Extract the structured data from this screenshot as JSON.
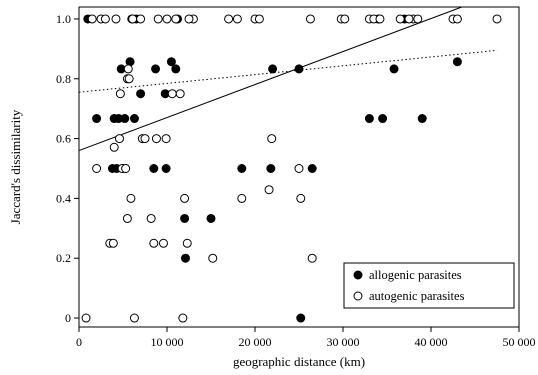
{
  "chart_data": {
    "type": "scatter",
    "xlabel": "geographic distance (km)",
    "ylabel": "Jaccard's dissimilarity",
    "xlim": [
      0,
      50000
    ],
    "ylim": [
      -0.03,
      1.04
    ],
    "xticks": [
      0,
      10000,
      20000,
      30000,
      40000,
      50000
    ],
    "xtick_labels": [
      "0",
      "10 000",
      "20 000",
      "30 000",
      "40 000",
      "50 000"
    ],
    "yticks": [
      0,
      0.2,
      0.4,
      0.6,
      0.8,
      1.0
    ],
    "ytick_labels": [
      "0",
      "0.2",
      "0.4",
      "0.6",
      "0.8",
      "1.0"
    ],
    "grid": false,
    "legend_position": "bottom-right",
    "series": [
      {
        "name": "allogenic parasites",
        "marker": "filled-circle",
        "color": "#000000",
        "points": [
          [
            1000,
            1.0
          ],
          [
            2000,
            0.667
          ],
          [
            4000,
            0.667
          ],
          [
            4500,
            0.667
          ],
          [
            4800,
            0.833
          ],
          [
            5200,
            0.667
          ],
          [
            3800,
            0.5
          ],
          [
            4300,
            0.5
          ],
          [
            5000,
            0.5
          ],
          [
            5800,
            0.857
          ],
          [
            6000,
            1.0
          ],
          [
            6500,
            1.0
          ],
          [
            6300,
            0.667
          ],
          [
            7000,
            0.75
          ],
          [
            8500,
            0.5
          ],
          [
            8700,
            0.833
          ],
          [
            9800,
            0.75
          ],
          [
            9900,
            0.5
          ],
          [
            10500,
            0.857
          ],
          [
            11000,
            0.833
          ],
          [
            11200,
            1.0
          ],
          [
            12000,
            0.333
          ],
          [
            12100,
            0.2
          ],
          [
            15000,
            0.333
          ],
          [
            18500,
            0.5
          ],
          [
            21800,
            0.5
          ],
          [
            22000,
            0.833
          ],
          [
            25000,
            0.833
          ],
          [
            25200,
            0.0
          ],
          [
            26500,
            0.5
          ],
          [
            33000,
            0.667
          ],
          [
            34500,
            0.667
          ],
          [
            35800,
            0.833
          ],
          [
            37000,
            1.0
          ],
          [
            39000,
            0.667
          ],
          [
            43000,
            0.857
          ]
        ]
      },
      {
        "name": "autogenic parasites",
        "marker": "open-circle",
        "color": "#000000",
        "points": [
          [
            800,
            0.0
          ],
          [
            1500,
            1.0
          ],
          [
            2000,
            0.5
          ],
          [
            2500,
            1.0
          ],
          [
            3000,
            1.0
          ],
          [
            3500,
            0.25
          ],
          [
            3900,
            0.25
          ],
          [
            4000,
            0.571
          ],
          [
            4200,
            1.0
          ],
          [
            4600,
            0.6
          ],
          [
            4700,
            0.75
          ],
          [
            4900,
            0.5
          ],
          [
            5300,
            0.5
          ],
          [
            5500,
            0.8
          ],
          [
            5600,
            0.833
          ],
          [
            5700,
            0.8
          ],
          [
            5900,
            0.4
          ],
          [
            5500,
            0.333
          ],
          [
            6100,
            1.0
          ],
          [
            6300,
            0.0
          ],
          [
            7000,
            1.0
          ],
          [
            7200,
            0.6
          ],
          [
            7500,
            0.6
          ],
          [
            8200,
            0.333
          ],
          [
            8500,
            0.25
          ],
          [
            8800,
            0.6
          ],
          [
            9600,
            0.25
          ],
          [
            9900,
            0.6
          ],
          [
            10000,
            1.0
          ],
          [
            10600,
            0.75
          ],
          [
            11500,
            0.75
          ],
          [
            11800,
            0.0
          ],
          [
            12000,
            0.4
          ],
          [
            12300,
            0.25
          ],
          [
            13000,
            1.0
          ],
          [
            15200,
            0.2
          ],
          [
            18500,
            0.4
          ],
          [
            21600,
            0.429
          ],
          [
            21900,
            0.6
          ],
          [
            25000,
            0.5
          ],
          [
            25200,
            0.4
          ],
          [
            26300,
            1.0
          ],
          [
            26500,
            0.2
          ],
          [
            29800,
            1.0
          ],
          [
            33000,
            1.0
          ],
          [
            34000,
            1.0
          ],
          [
            36500,
            1.0
          ],
          [
            38000,
            1.0
          ],
          [
            42500,
            1.0
          ],
          [
            47500,
            1.0
          ],
          [
            17000,
            1.0
          ],
          [
            18000,
            1.0
          ],
          [
            20000,
            1.0
          ],
          [
            20500,
            1.0
          ],
          [
            11000,
            1.0
          ],
          [
            9000,
            1.0
          ],
          [
            12500,
            1.0
          ],
          [
            30200,
            1.0
          ],
          [
            33500,
            1.0
          ],
          [
            34200,
            1.0
          ],
          [
            37500,
            1.0
          ],
          [
            38500,
            1.0
          ],
          [
            43000,
            1.0
          ]
        ]
      }
    ],
    "fit_lines": [
      {
        "series": "allogenic parasites",
        "style": "solid",
        "x": [
          0,
          43500
        ],
        "y": [
          0.56,
          1.04
        ]
      },
      {
        "series": "autogenic parasites",
        "style": "dotted",
        "x": [
          0,
          47500
        ],
        "y": [
          0.755,
          0.895
        ]
      }
    ]
  }
}
